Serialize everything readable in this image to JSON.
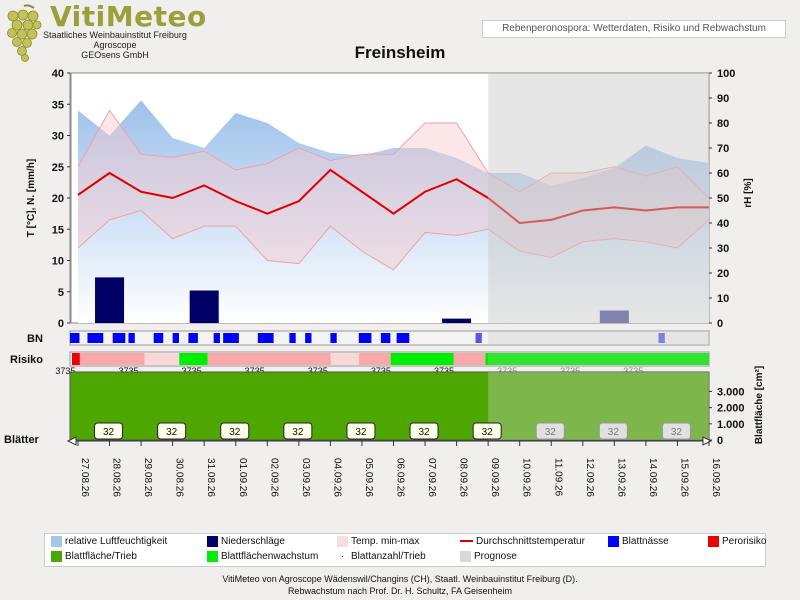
{
  "header": {
    "logo_text": "VitiMeteo",
    "logo_sub": [
      "Staatliches Weinbauinstitut Freiburg",
      "Agroscope",
      "GEOsens GmbH"
    ],
    "banner": "Rebenperonospora: Wetterdaten, Risiko und Rebwachstum",
    "station": "Freinsheim"
  },
  "footer": {
    "line1": "VitiMeteo von Agroscope Wädenswil/Changins (CH), Staatl. Weinbauinstitut Freiburg (D).",
    "line2": "Rebwachstum nach Prof. Dr. H. Schultz, FA Geisenheim"
  },
  "legend": [
    {
      "label": "relative Luftfeuchtigkeit",
      "color": "#a7c7ea"
    },
    {
      "label": "Niederschläge",
      "color": "#000066"
    },
    {
      "label": "Temp. min-max",
      "color": "#f7dde0"
    },
    {
      "label": "Durchschnittstemperatur",
      "color": "#e00000"
    },
    {
      "label": "Blattnässe",
      "color": "#0000ff"
    },
    {
      "label": "Perorisiko",
      "color": "#ee0000"
    },
    {
      "label": "Blattfläche/Trieb",
      "color": "#4ea600"
    },
    {
      "label": "Blattflächenwachstum",
      "color": "#00ee00"
    },
    {
      "label": "Blattanzahl/Trieb",
      "color": "#666666"
    },
    {
      "label": "Prognose",
      "color": "#d8d8d8"
    }
  ],
  "chart_data": {
    "type": "line",
    "ylabel_left": "T [°C], N. [mm/h]",
    "ylabel_right": "rH [%]",
    "ylabel_leaf": "Blattfläche [cm²]",
    "row_labels": {
      "bn": "BN",
      "risk": "Risiko",
      "leaves": "Blätter"
    },
    "ylim_left": [
      0,
      40
    ],
    "yticks_left": [
      "0",
      "5",
      "10",
      "15",
      "20",
      "25",
      "30",
      "35",
      "40"
    ],
    "ylim_right": [
      0,
      100
    ],
    "yticks_right": [
      "0",
      "10",
      "20",
      "30",
      "40",
      "50",
      "60",
      "70",
      "80",
      "90",
      "100"
    ],
    "leaf_ticks": [
      "0",
      "1.000",
      "2.000",
      "3.000"
    ],
    "dates": [
      "27.08.26",
      "28.08.26",
      "29.08.26",
      "30.08.26",
      "31.08.26",
      "01.09.26",
      "02.09.26",
      "03.09.26",
      "04.09.26",
      "05.09.26",
      "06.09.26",
      "07.09.26",
      "08.09.26",
      "09.09.26",
      "10.09.26",
      "11.09.26",
      "12.09.26",
      "13.09.26",
      "14.09.26",
      "15.09.26",
      "16.09.26"
    ],
    "forecast_from": "09.09.26",
    "temp_avg": [
      20.5,
      24,
      21,
      20,
      22,
      19.5,
      17.5,
      19.5,
      24.5,
      21,
      17.5,
      21,
      23,
      20,
      16,
      16.5,
      18,
      18.5,
      18,
      18.5,
      18.5
    ],
    "temp_max": [
      25,
      34,
      27,
      26.5,
      27.5,
      24.5,
      25.5,
      28,
      26,
      27,
      27,
      32,
      32,
      24,
      21,
      24,
      24,
      25,
      23.5,
      25,
      20
    ],
    "temp_min": [
      12,
      16.5,
      18,
      13.5,
      15.5,
      15.5,
      10,
      9.5,
      15.5,
      11.5,
      8.5,
      14.5,
      14,
      15,
      11.5,
      10.5,
      13,
      13.5,
      13,
      12,
      16.5
    ],
    "rh": [
      85,
      75,
      89,
      74,
      70,
      84,
      80,
      72,
      68,
      67,
      70,
      70,
      66,
      60,
      60,
      55,
      58,
      62,
      71,
      66,
      64
    ],
    "precip": [
      0,
      7.3,
      0,
      0,
      5.2,
      0,
      0,
      0,
      0,
      0,
      0,
      0,
      0.7,
      0,
      0,
      0,
      0,
      2,
      0,
      0,
      0
    ],
    "leaf_count": [
      "32",
      "32",
      "32",
      "32",
      "32",
      "32",
      "32",
      "32",
      "32",
      "32",
      "32",
      "32"
    ],
    "risk_label": "3735",
    "risk_segments": [
      {
        "from": 0,
        "to": 0.25,
        "color": "#ee0000"
      },
      {
        "from": 0.25,
        "to": 2.3,
        "color": "#f8a8a8"
      },
      {
        "from": 2.3,
        "to": 3.4,
        "color": "#fbd8d8"
      },
      {
        "from": 3.4,
        "to": 4.3,
        "color": "#00ee00"
      },
      {
        "from": 4.3,
        "to": 8.2,
        "color": "#f8a8a8"
      },
      {
        "from": 8.2,
        "to": 9.1,
        "color": "#fbd8d8"
      },
      {
        "from": 9.1,
        "to": 10.1,
        "color": "#f8a8a8"
      },
      {
        "from": 10.1,
        "to": 12.1,
        "color": "#00ee00"
      },
      {
        "from": 12.1,
        "to": 13.1,
        "color": "#f8a8a8"
      },
      {
        "from": 13.1,
        "to": 20.8,
        "color": "#00ee00"
      }
    ],
    "bn_wet": [
      [
        0.1,
        0.4
      ],
      [
        0.8,
        1.3
      ],
      [
        1.6,
        2.0
      ],
      [
        2.1,
        2.3
      ],
      [
        2.9,
        3.2
      ],
      [
        3.5,
        3.7
      ],
      [
        4.0,
        4.3
      ],
      [
        4.8,
        5.0
      ],
      [
        5.1,
        5.6
      ],
      [
        6.2,
        6.7
      ],
      [
        7.2,
        7.4
      ],
      [
        7.7,
        7.9
      ],
      [
        8.5,
        8.7
      ],
      [
        9.4,
        9.8
      ],
      [
        10.1,
        10.4
      ],
      [
        10.6,
        11.0
      ],
      [
        13.1,
        13.3
      ],
      [
        18.9,
        19.1
      ]
    ],
    "leaf_area": 3700
  }
}
